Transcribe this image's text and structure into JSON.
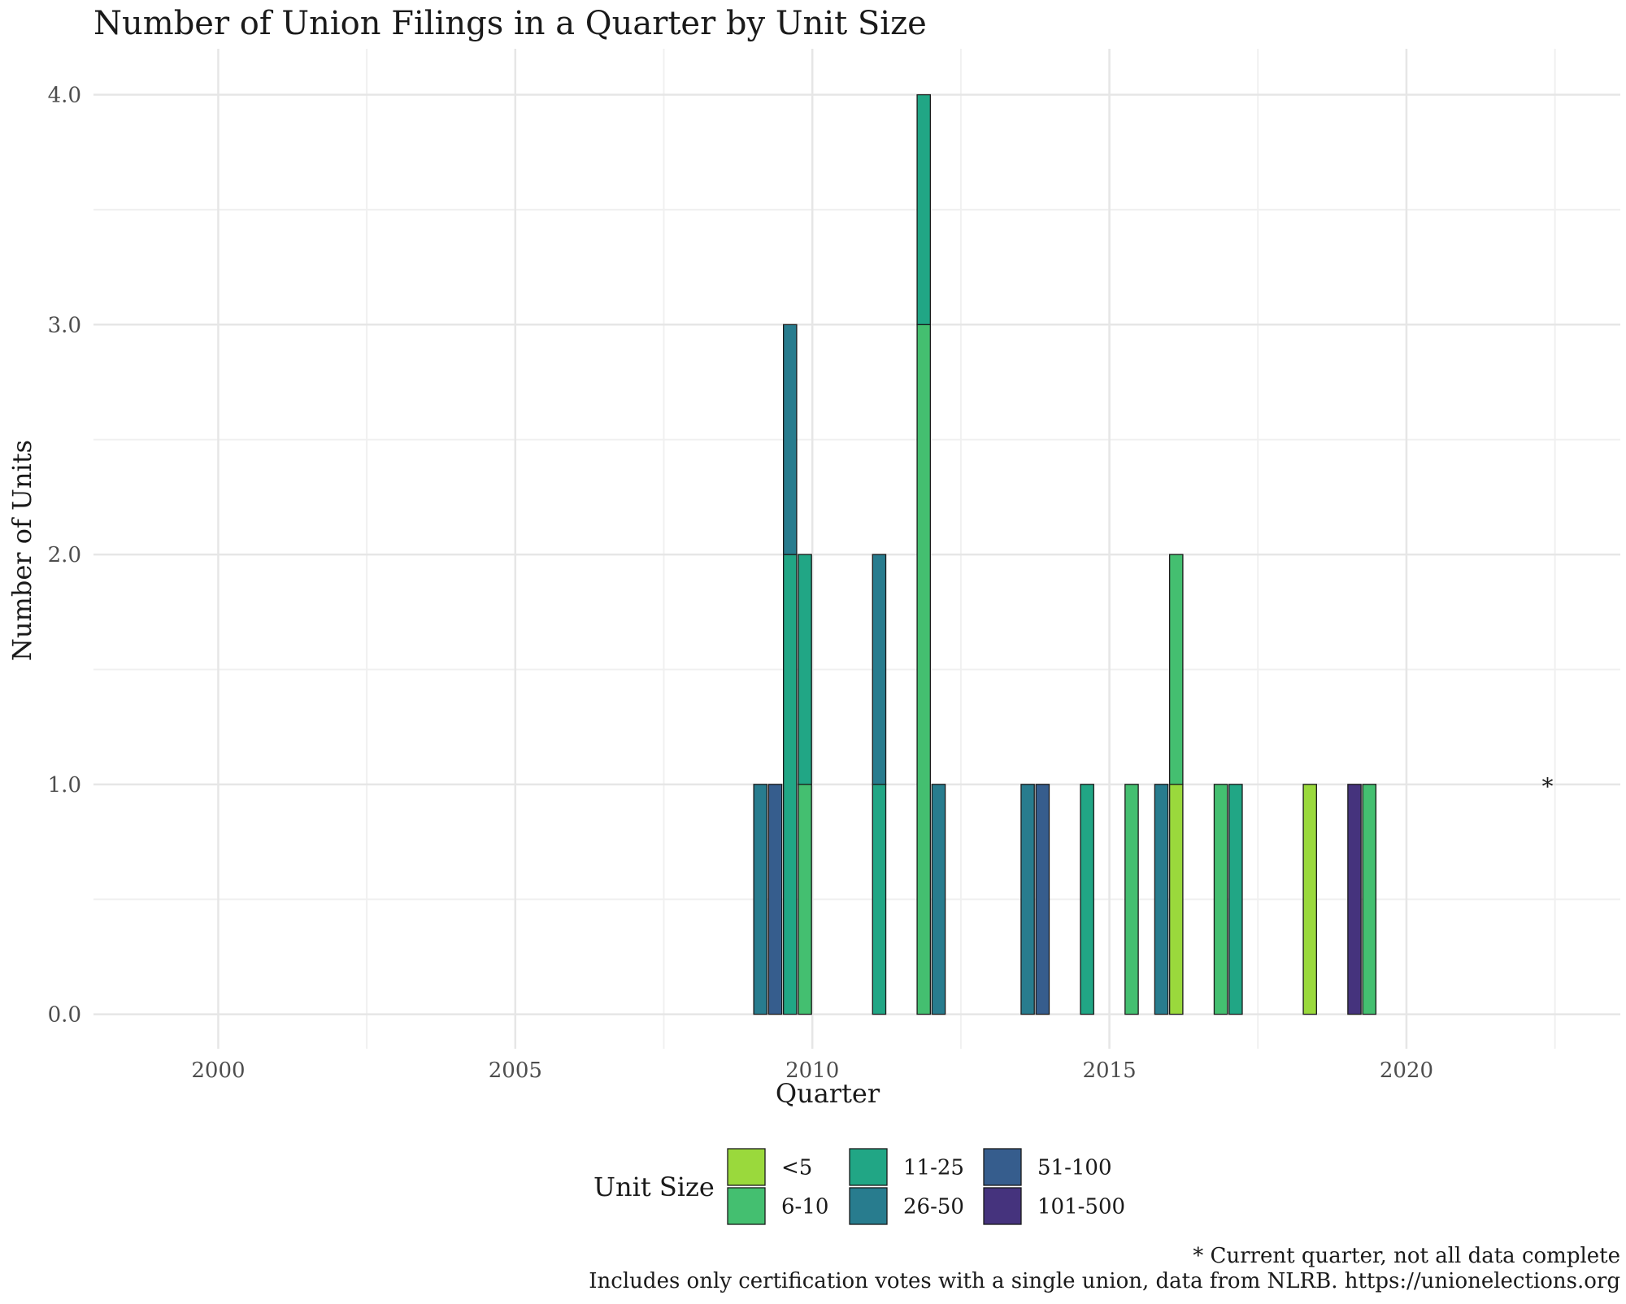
{
  "chart_data": {
    "type": "bar",
    "stacked": true,
    "title": "Number of Union Filings in a Quarter by Unit Size",
    "xlabel": "Quarter",
    "ylabel": "Number of Units",
    "xlim": [
      1997.9,
      2023.6
    ],
    "ylim": [
      -0.15,
      4.2
    ],
    "x_ticks": [
      2000,
      2005,
      2010,
      2015,
      2020
    ],
    "y_ticks": [
      0,
      1,
      2,
      3,
      4
    ],
    "y_tick_labels": [
      "0.0",
      "1.0",
      "2.0",
      "3.0",
      "4.0"
    ],
    "grid": true,
    "legend_title": "Unit Size",
    "legend_position": "bottom",
    "categories": [
      "<5",
      "6-10",
      "11-25",
      "26-50",
      "51-100",
      "101-500"
    ],
    "colors": {
      "<5": "#9ad93c",
      "6-10": "#44bf70",
      "11-25": "#21a685",
      "26-50": "#287c8e",
      "51-100": "#365d8d",
      "101-500": "#45337d"
    },
    "bars": [
      {
        "x": 2009.125,
        "segments": [
          {
            "size": "26-50",
            "value": 1
          }
        ]
      },
      {
        "x": 2009.375,
        "segments": [
          {
            "size": "51-100",
            "value": 1
          }
        ]
      },
      {
        "x": 2009.625,
        "segments": [
          {
            "size": "11-25",
            "value": 2
          },
          {
            "size": "26-50",
            "value": 1
          }
        ]
      },
      {
        "x": 2009.875,
        "segments": [
          {
            "size": "6-10",
            "value": 1
          },
          {
            "size": "11-25",
            "value": 1
          }
        ]
      },
      {
        "x": 2011.125,
        "segments": [
          {
            "size": "11-25",
            "value": 1
          },
          {
            "size": "26-50",
            "value": 1
          }
        ]
      },
      {
        "x": 2011.875,
        "segments": [
          {
            "size": "6-10",
            "value": 3
          },
          {
            "size": "11-25",
            "value": 1
          }
        ]
      },
      {
        "x": 2012.125,
        "segments": [
          {
            "size": "26-50",
            "value": 1
          }
        ]
      },
      {
        "x": 2013.625,
        "segments": [
          {
            "size": "26-50",
            "value": 1
          }
        ]
      },
      {
        "x": 2013.875,
        "segments": [
          {
            "size": "51-100",
            "value": 1
          }
        ]
      },
      {
        "x": 2014.625,
        "segments": [
          {
            "size": "11-25",
            "value": 1
          }
        ]
      },
      {
        "x": 2015.375,
        "segments": [
          {
            "size": "6-10",
            "value": 1
          }
        ]
      },
      {
        "x": 2015.875,
        "segments": [
          {
            "size": "26-50",
            "value": 1
          }
        ]
      },
      {
        "x": 2016.125,
        "segments": [
          {
            "size": "<5",
            "value": 1
          },
          {
            "size": "6-10",
            "value": 1
          }
        ]
      },
      {
        "x": 2016.875,
        "segments": [
          {
            "size": "6-10",
            "value": 1
          }
        ]
      },
      {
        "x": 2017.125,
        "segments": [
          {
            "size": "11-25",
            "value": 1
          }
        ]
      },
      {
        "x": 2018.375,
        "segments": [
          {
            "size": "<5",
            "value": 1
          }
        ]
      },
      {
        "x": 2019.125,
        "segments": [
          {
            "size": "101-500",
            "value": 1
          }
        ]
      },
      {
        "x": 2019.375,
        "segments": [
          {
            "size": "6-10",
            "value": 1
          }
        ]
      }
    ],
    "annotations": [
      {
        "text": "*",
        "x": 2022.375,
        "y": 1
      }
    ],
    "caption_lines": [
      "* Current quarter, not all data complete",
      "Includes only certification votes with a single union, data from NLRB. https://unionelections.org"
    ]
  }
}
